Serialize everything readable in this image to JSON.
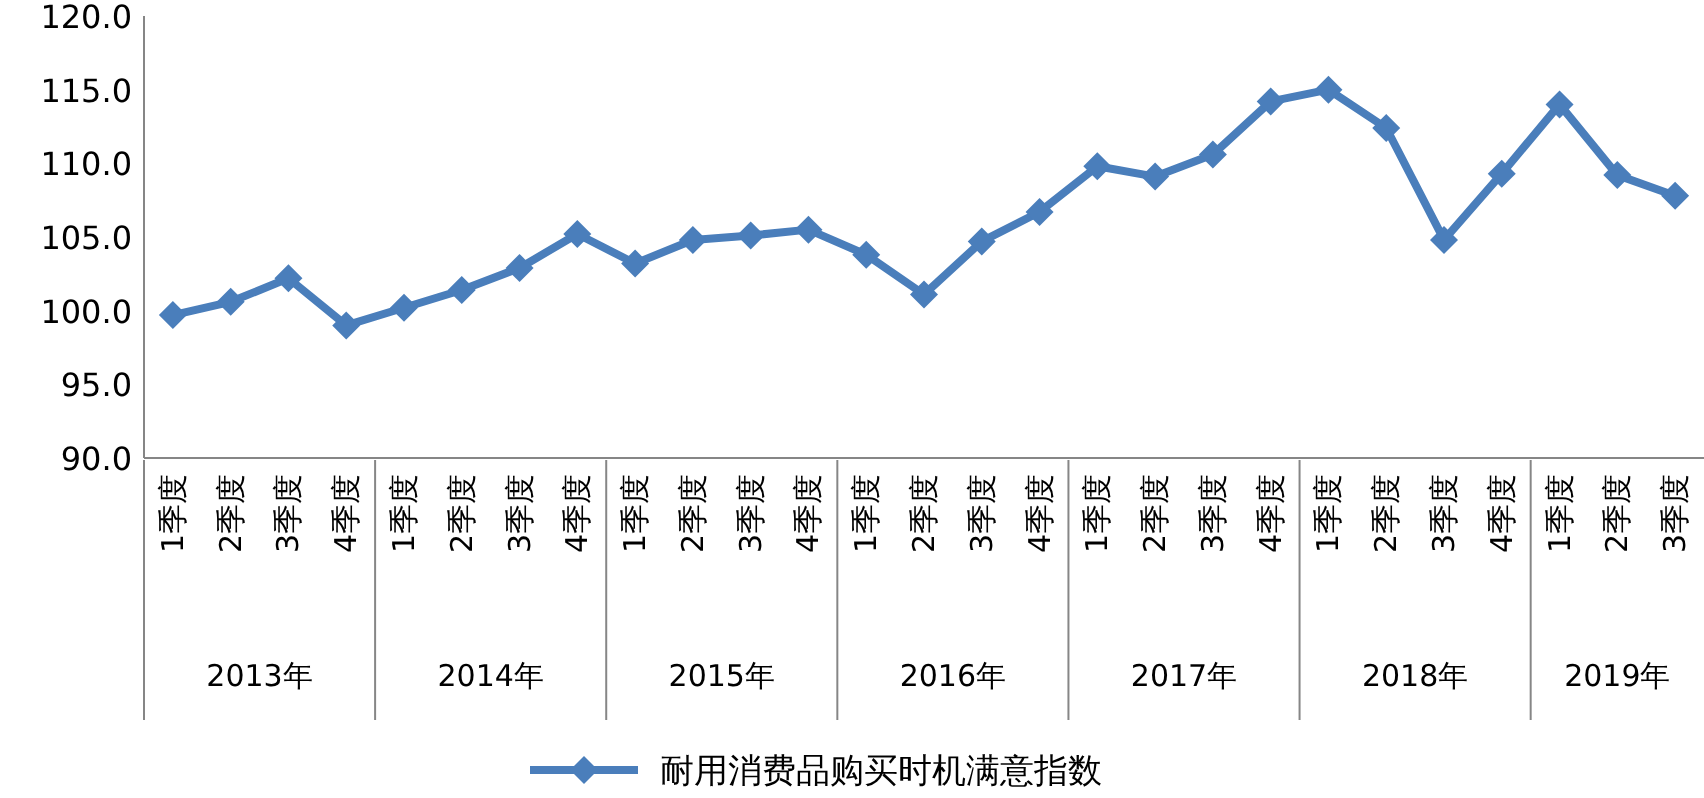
{
  "chart_data": {
    "type": "line",
    "categories": [
      "1季度",
      "2季度",
      "3季度",
      "4季度",
      "1季度",
      "2季度",
      "3季度",
      "4季度",
      "1季度",
      "2季度",
      "3季度",
      "4季度",
      "1季度",
      "2季度",
      "3季度",
      "4季度",
      "1季度",
      "2季度",
      "3季度",
      "4季度",
      "1季度",
      "2季度",
      "3季度",
      "4季度",
      "1季度",
      "2季度",
      "3季度"
    ],
    "series": [
      {
        "name": "耐用消费品购买时机满意指数",
        "color": "#4a7ebb",
        "values": [
          99.7,
          100.6,
          102.2,
          99.0,
          100.2,
          101.4,
          102.9,
          105.2,
          103.2,
          104.8,
          105.1,
          105.5,
          103.8,
          101.1,
          104.7,
          106.7,
          109.8,
          109.1,
          110.6,
          114.2,
          115.0,
          112.4,
          104.8,
          109.3,
          114.0,
          109.2,
          107.8
        ]
      }
    ],
    "annotations": [
      "2013年",
      "2014年",
      "2015年",
      "2016年",
      "2017年",
      "2018年",
      "2019年"
    ],
    "ylim": [
      90,
      120
    ],
    "yticks": [
      {
        "value": 90,
        "label": "90.0"
      },
      {
        "value": 95,
        "label": "95.0"
      },
      {
        "value": 100,
        "label": "100.0"
      },
      {
        "value": 105,
        "label": "105.0"
      },
      {
        "value": 110,
        "label": "110.0"
      },
      {
        "value": 115,
        "label": "115.0"
      },
      {
        "value": 120,
        "label": "120.0"
      }
    ],
    "marker": "diamond",
    "line_style": "solid",
    "legend": "bottom",
    "grid": false
  }
}
